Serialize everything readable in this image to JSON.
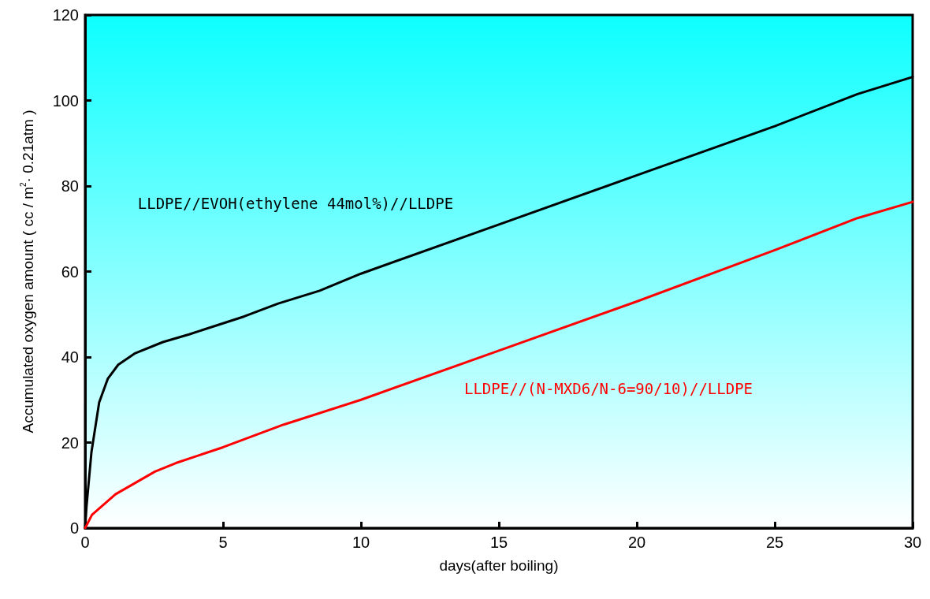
{
  "chart_data": {
    "type": "line",
    "xlabel": "days(after boiling)",
    "ylabel": "Accumulated oxygen amount ( cc / m$^{2}$· 0.21atm )",
    "xlim": [
      0,
      30
    ],
    "xticks": [
      0,
      5,
      10,
      15,
      20,
      25,
      30
    ],
    "ylim": [
      0,
      120
    ],
    "yticks": [
      0,
      20,
      40,
      60,
      80,
      100,
      120
    ],
    "grid": false,
    "legend": false,
    "marker": "none",
    "line_style": "solid",
    "series": [
      {
        "name": "LLDPE//EVOH(ethylene 44mol%)//LLDPE",
        "color": "#000000",
        "x": [
          0,
          0.05,
          0.23,
          0.51,
          0.82,
          1.2,
          1.82,
          2.82,
          3.77,
          5.77,
          7,
          8.5,
          10,
          15,
          20,
          25,
          28,
          30
        ],
        "values": [
          0,
          5,
          17.8,
          29.4,
          34.9,
          38.2,
          40.9,
          43.5,
          45.3,
          49.5,
          52.5,
          55.5,
          59.5,
          71,
          82.5,
          94,
          101.5,
          105.5
        ]
      },
      {
        "name": "LLDPE//(N-MXD6/N-6=90/10)//LLDPE",
        "color": "#ff0000",
        "x": [
          0,
          0.25,
          1.1,
          2.53,
          3.29,
          5,
          7.2,
          10,
          15,
          20,
          25,
          28,
          30
        ],
        "values": [
          0,
          3.1,
          7.9,
          13.2,
          15.2,
          18.9,
          24.2,
          30,
          41.5,
          53,
          65,
          72.5,
          76.3
        ]
      }
    ]
  }
}
